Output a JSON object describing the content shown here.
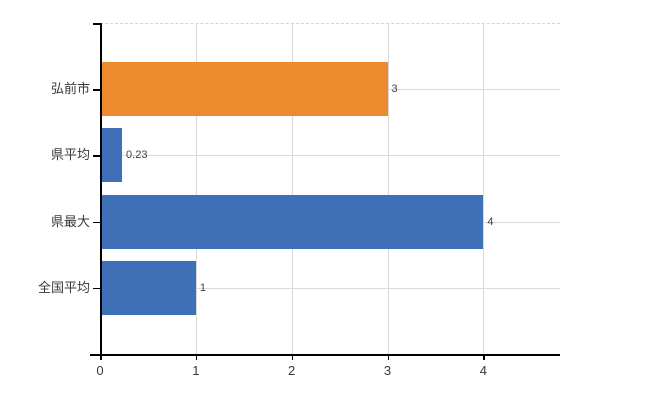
{
  "chart_data": {
    "type": "bar",
    "orientation": "horizontal",
    "title": "",
    "xlabel": "",
    "ylabel": "",
    "categories": [
      "弘前市",
      "県平均",
      "県最大",
      "全国平均"
    ],
    "values": [
      3,
      0.23,
      4,
      1
    ],
    "value_labels": [
      "3",
      "0.23",
      "4",
      "1"
    ],
    "bar_colors": [
      "#ED8A2E",
      "#3E6FB7",
      "#3E6FB7",
      "#3E6FB7"
    ],
    "x_ticks": [
      0,
      1,
      2,
      3,
      4
    ],
    "x_tick_labels": [
      "0",
      "1",
      "2",
      "3",
      "4"
    ],
    "xlim": [
      0,
      4.8
    ],
    "grid": true,
    "legend": false,
    "colors": {
      "gridline": "#D9D9D9",
      "axis": "#000000",
      "text": "#404040",
      "background": "#FFFFFF"
    }
  }
}
